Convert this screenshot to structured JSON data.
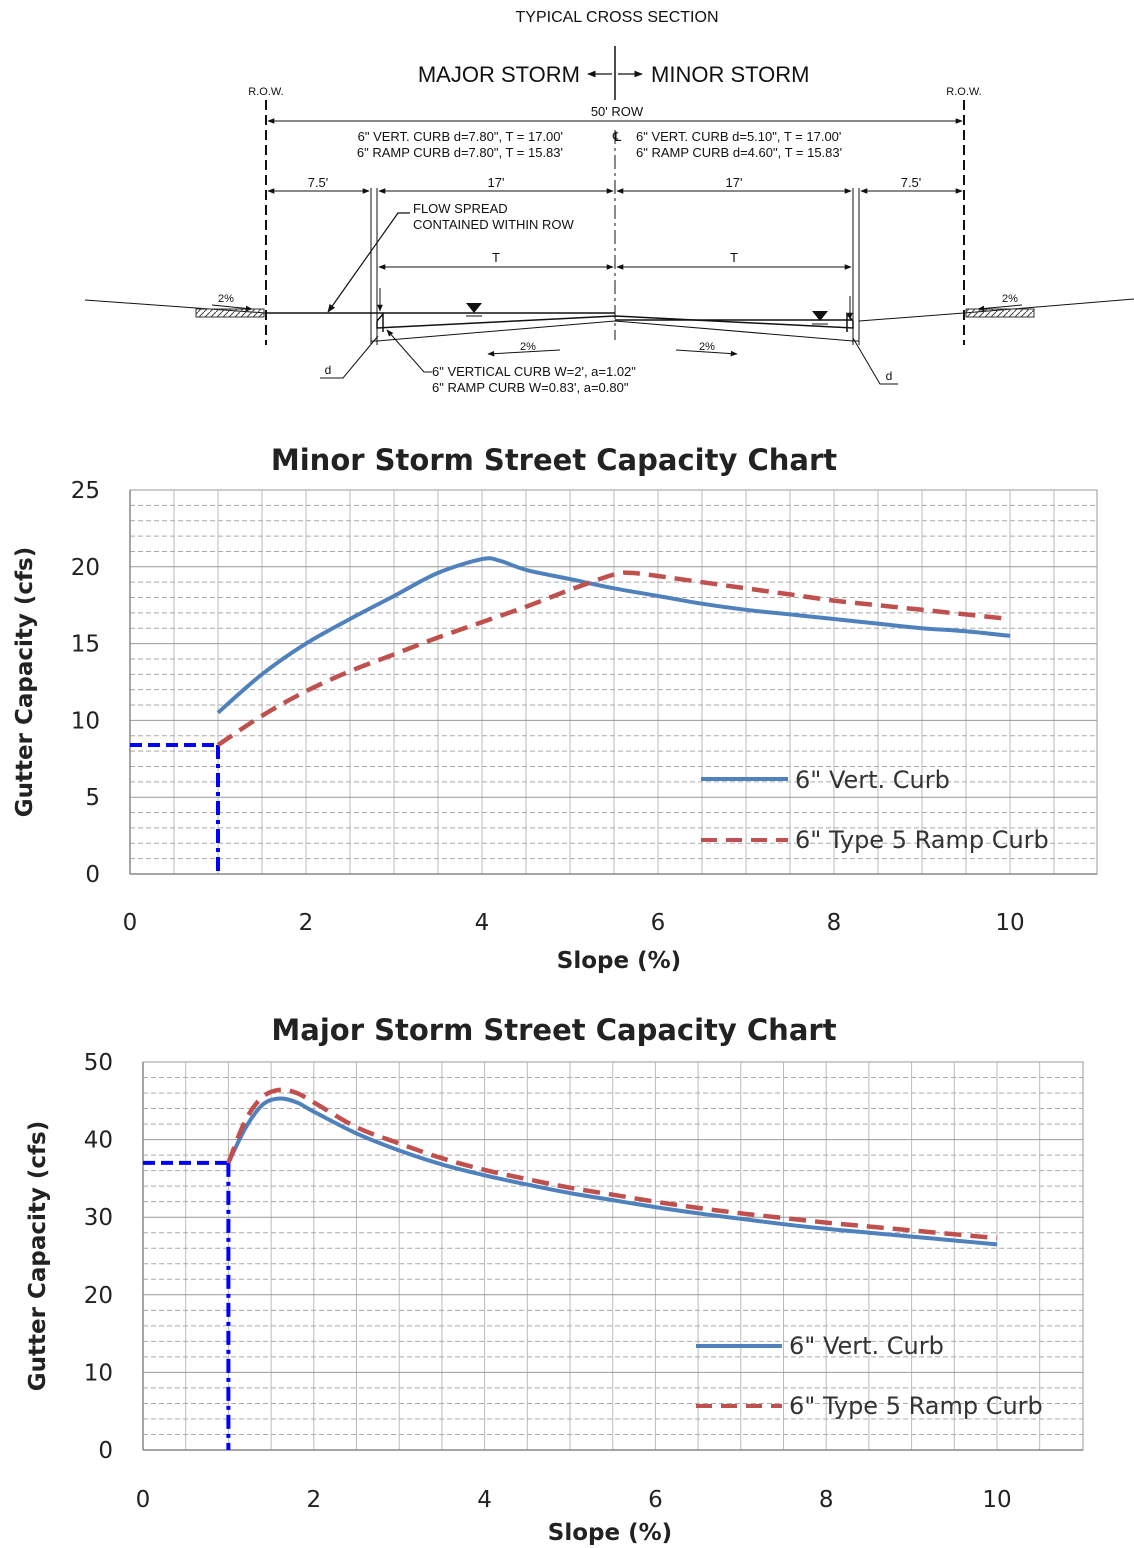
{
  "section": {
    "title": "TYPICAL  CROSS SECTION",
    "major": "MAJOR STORM",
    "minor": "MINOR STORM",
    "row_left": "R.O.W.",
    "row_right": "R.O.W.",
    "row_width": "50' ROW",
    "left_note_1": "6\" VERT. CURB d=7.80\", T = 17.00'",
    "left_note_2": "6\" RAMP CURB d=7.80\", T = 15.83'",
    "centerline": "℄",
    "right_note_1": "6\" VERT. CURB d=5.10\", T = 17.00'",
    "right_note_2": "6\" RAMP CURB d=4.60\", T = 15.83'",
    "dim_left_outer": "7.5'",
    "dim_left_inner": "17'",
    "dim_right_inner": "17'",
    "dim_right_outer": "7.5'",
    "flow_1": "FLOW SPREAD",
    "flow_2": "CONTAINED WITHIN ROW",
    "t_left": "T",
    "t_right": "T",
    "slope_1": "2%",
    "slope_2": "2%",
    "slope_3": "2%",
    "slope_4": "2%",
    "d_left": "d",
    "d_right": "d",
    "curb_1": "6\"  VERTICAL CURB W=2', a=1.02\"",
    "curb_2": "6\"  RAMP CURB W=0.83', a=0.80\""
  },
  "chart_data": [
    {
      "type": "line",
      "title": "Minor Storm Street Capacity Chart",
      "xlabel": "Slope (%)",
      "ylabel": "Gutter Capacity (cfs)",
      "xlim": [
        0,
        10
      ],
      "ylim": [
        0,
        25
      ],
      "xticks": [
        "0",
        "2",
        "4",
        "6",
        "8",
        "10"
      ],
      "yticks": [
        "0",
        "5",
        "10",
        "15",
        "20",
        "25"
      ],
      "grid": true,
      "legend": "bottom-right",
      "series": [
        {
          "name": "6\" Vert. Curb",
          "color": "#4f81bd",
          "style": "solid",
          "x": [
            1,
            1.5,
            2,
            2.5,
            3,
            3.5,
            4,
            4.2,
            4.5,
            5,
            5.5,
            6,
            6.5,
            7,
            7.5,
            8,
            8.5,
            9,
            9.5,
            10
          ],
          "y": [
            10.5,
            13.0,
            15.0,
            16.6,
            18.1,
            19.6,
            20.5,
            20.4,
            19.8,
            19.2,
            18.6,
            18.1,
            17.6,
            17.2,
            16.9,
            16.6,
            16.3,
            16.0,
            15.8,
            15.5
          ]
        },
        {
          "name": "6\" Type 5 Ramp Curb",
          "color": "#c0504d",
          "style": "dashed",
          "x": [
            1,
            1.5,
            2,
            2.5,
            3,
            3.5,
            4,
            4.5,
            5,
            5.5,
            5.7,
            6,
            6.5,
            7,
            7.5,
            8,
            8.5,
            9,
            9.5,
            10
          ],
          "y": [
            8.4,
            10.3,
            11.9,
            13.2,
            14.3,
            15.4,
            16.4,
            17.4,
            18.5,
            19.5,
            19.6,
            19.4,
            19.0,
            18.6,
            18.2,
            17.8,
            17.5,
            17.2,
            16.9,
            16.6
          ]
        }
      ],
      "annotation": {
        "x": 1,
        "y": 8.4,
        "color": "#0000ff"
      }
    },
    {
      "type": "line",
      "title": "Major Storm Street Capacity Chart",
      "xlabel": "Slope (%)",
      "ylabel": "Gutter Capacity (cfs)",
      "xlim": [
        0,
        10
      ],
      "ylim": [
        0,
        50
      ],
      "xticks": [
        "0",
        "2",
        "4",
        "6",
        "8",
        "10"
      ],
      "yticks": [
        "0",
        "10",
        "20",
        "30",
        "40",
        "50"
      ],
      "grid": true,
      "legend": "bottom-right",
      "series": [
        {
          "name": "6\" Vert. Curb",
          "color": "#4f81bd",
          "style": "solid",
          "x": [
            1,
            1.2,
            1.4,
            1.6,
            1.8,
            2,
            2.5,
            3,
            3.5,
            4,
            4.5,
            5,
            5.5,
            6,
            6.5,
            7,
            7.5,
            8,
            8.5,
            9,
            9.5,
            10
          ],
          "y": [
            37,
            41.5,
            44.5,
            45.3,
            44.8,
            43.6,
            40.8,
            38.6,
            36.8,
            35.4,
            34.2,
            33.1,
            32.2,
            31.3,
            30.5,
            29.8,
            29.1,
            28.5,
            28.0,
            27.5,
            27.0,
            26.5
          ]
        },
        {
          "name": "6\" Type 5 Ramp Curb",
          "color": "#c0504d",
          "style": "dashed",
          "x": [
            1,
            1.2,
            1.4,
            1.6,
            1.8,
            2,
            2.5,
            3,
            3.5,
            4,
            4.5,
            5,
            5.5,
            6,
            6.5,
            7,
            7.5,
            8,
            8.5,
            9,
            9.5,
            10
          ],
          "y": [
            37,
            42.5,
            45.5,
            46.4,
            46.0,
            44.8,
            41.6,
            39.5,
            37.6,
            36.1,
            34.9,
            33.8,
            32.9,
            32.0,
            31.2,
            30.5,
            29.9,
            29.3,
            28.8,
            28.3,
            27.8,
            27.3
          ]
        }
      ],
      "annotation": {
        "x": 1,
        "y": 37,
        "color": "#0000ff"
      }
    }
  ]
}
